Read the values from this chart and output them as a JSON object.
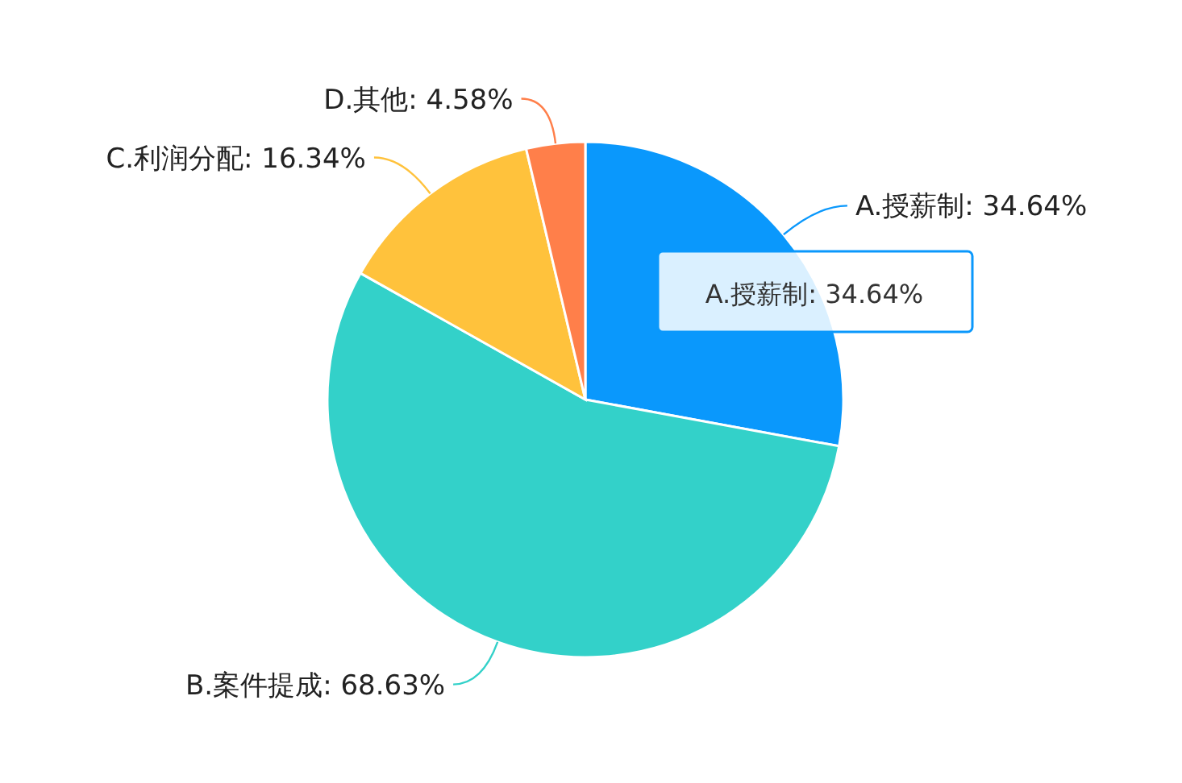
{
  "chart_data": {
    "type": "pie",
    "categories": [
      "A.授薪制",
      "B.案件提成",
      "C.利润分配",
      "D.其他"
    ],
    "values": [
      34.64,
      68.63,
      16.34,
      4.58
    ],
    "colors": [
      "#0a98fc",
      "#33d1c9",
      "#ffc23c",
      "#ff7f4a"
    ],
    "value_labels": [
      ": 34.64%",
      ": 68.63%",
      ": 16.34%",
      ": 4.58%"
    ],
    "annotations": [
      "A.授薪制: 34.64%"
    ]
  }
}
